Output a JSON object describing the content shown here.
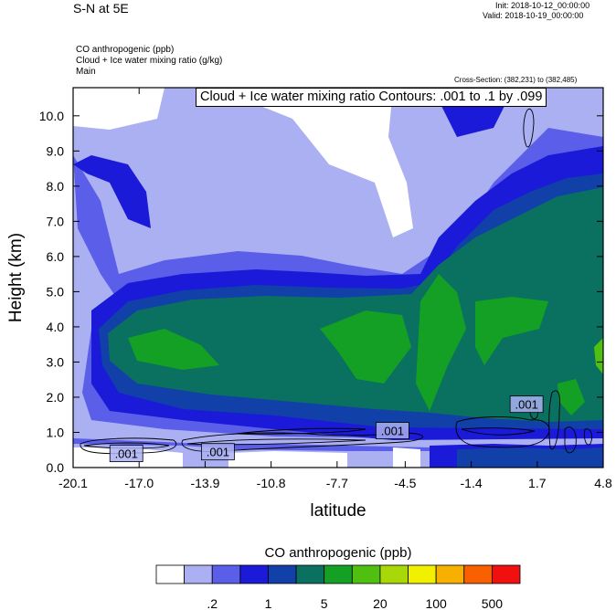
{
  "header": {
    "title_left": "S-N at 5E",
    "init": "Init: 2018-10-12_00:00:00",
    "valid": "Valid: 2018-10-19_00:00:00",
    "field1": "CO anthropogenic   (ppb)",
    "field2": "Cloud + Ice water mixing ratio   (g/kg)",
    "field3": "Main",
    "cross_section": "Cross-Section: (382,231) to (382,485)",
    "contour_box": "Cloud + Ice water mixing ratio Contours: .001 to .1 by .099"
  },
  "chart_data": {
    "type": "heatmap",
    "xlabel": "latitude",
    "ylabel": "Height (km)",
    "x_ticks": [
      "-20.1",
      "-17.0",
      "-13.9",
      "-10.8",
      "-7.7",
      "-4.5",
      "-1.4",
      "1.7",
      "4.8"
    ],
    "x_tick_values": [
      -20.1,
      -17.0,
      -13.9,
      -10.8,
      -7.7,
      -4.5,
      -1.4,
      1.7,
      4.8
    ],
    "y_ticks": [
      "0.0",
      "1.0",
      "2.0",
      "3.0",
      "4.0",
      "5.0",
      "6.0",
      "7.0",
      "8.0",
      "9.0",
      "10.0"
    ],
    "y_tick_values": [
      0,
      1,
      2,
      3,
      4,
      5,
      6,
      7,
      8,
      9,
      10
    ],
    "xlim": [
      -20.1,
      4.8
    ],
    "ylim": [
      0,
      10.8
    ],
    "contour_labels": [
      {
        "text": ".001",
        "x": -17.6,
        "y": 0.4
      },
      {
        "text": ".001",
        "x": -13.3,
        "y": 0.45
      },
      {
        "text": ".001",
        "x": -5.1,
        "y": 1.05
      },
      {
        "text": ".001",
        "x": 1.2,
        "y": 1.8
      }
    ],
    "colorbar": {
      "title": "CO anthropogenic  (ppb)",
      "colors": [
        "#ffffff",
        "#aab0f2",
        "#5a5ee8",
        "#1a1ad8",
        "#1040a8",
        "#0a7060",
        "#14a024",
        "#50c010",
        "#a8d808",
        "#f0f000",
        "#f8b000",
        "#f86000",
        "#f01010"
      ],
      "labels": [
        ".2",
        "1",
        "5",
        "20",
        "100",
        "500"
      ]
    }
  }
}
